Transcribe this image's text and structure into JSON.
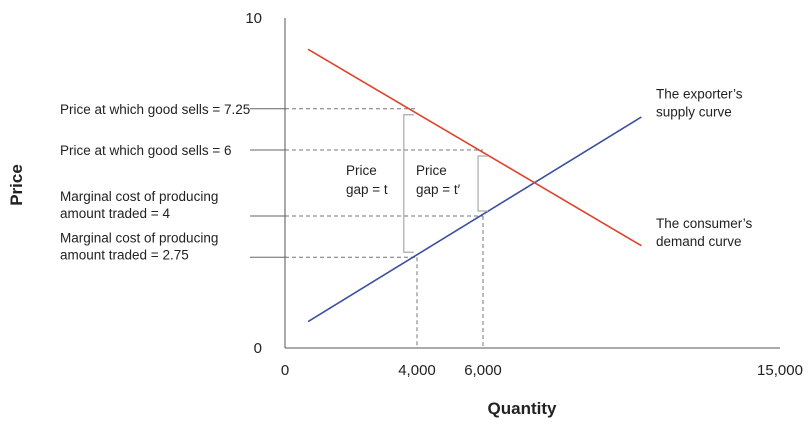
{
  "chart_data": {
    "type": "line",
    "xlabel": "Quantity",
    "ylabel": "Price",
    "xlim": [
      0,
      15000
    ],
    "ylim": [
      0,
      10
    ],
    "x_ticks": [
      {
        "value": 0,
        "label": "0"
      },
      {
        "value": 4000,
        "label": "4,000"
      },
      {
        "value": 6000,
        "label": "6,000"
      },
      {
        "value": 15000,
        "label": "15,000"
      }
    ],
    "y_ticks": [
      {
        "value": 0,
        "label": "0"
      },
      {
        "value": 10,
        "label": "10"
      }
    ],
    "series": [
      {
        "name": "The exporter’s supply curve",
        "label_lines": [
          "The exporter’s",
          "supply curve"
        ],
        "color": "#3a4fa0",
        "x": [
          700,
          10800
        ],
        "y": [
          0.8,
          7.0
        ]
      },
      {
        "name": "The consumer’s demand curve",
        "label_lines": [
          "The consumer’s",
          "demand curve"
        ],
        "color": "#e0432b",
        "x": [
          700,
          10800
        ],
        "y": [
          9.05,
          3.1
        ]
      }
    ],
    "price_levels": [
      {
        "value": 7.25,
        "lines": [
          "Price at which good sells = 7.25"
        ],
        "x_end": 4000
      },
      {
        "value": 6,
        "lines": [
          "Price at which good sells = 6"
        ],
        "x_end": 6000
      },
      {
        "value": 4,
        "lines": [
          "Marginal cost of producing",
          "amount traded = 4"
        ],
        "x_end": 6000
      },
      {
        "value": 2.75,
        "lines": [
          "Marginal cost of producing",
          "amount traded = 2.75"
        ],
        "x_end": 4000
      }
    ],
    "quantity_markers": [
      {
        "value": 4000,
        "y_top": 2.75
      },
      {
        "value": 6000,
        "y_top": 4
      }
    ],
    "gaps": [
      {
        "x": 3600,
        "y_low": 2.75,
        "y_high": 7.25,
        "label_lines": [
          "Price",
          "gap = t"
        ]
      },
      {
        "x": 5850,
        "y_low": 4,
        "y_high": 6,
        "label_lines": [
          "Price",
          "gap = t′"
        ]
      }
    ],
    "grid": false
  }
}
